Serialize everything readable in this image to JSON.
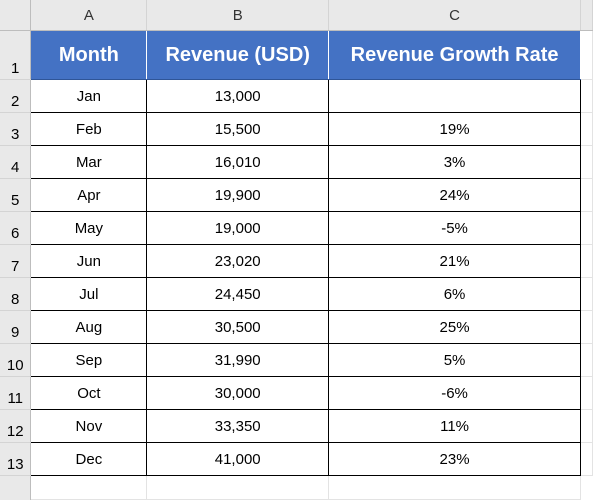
{
  "columns": [
    "A",
    "B",
    "C"
  ],
  "rows": [
    "1",
    "2",
    "3",
    "4",
    "5",
    "6",
    "7",
    "8",
    "9",
    "10",
    "11",
    "12",
    "13"
  ],
  "header": {
    "month": "Month",
    "revenue": "Revenue (USD)",
    "growth": "Revenue Growth Rate"
  },
  "data": [
    {
      "month": "Jan",
      "revenue": "13,000",
      "growth": ""
    },
    {
      "month": "Feb",
      "revenue": "15,500",
      "growth": "19%"
    },
    {
      "month": "Mar",
      "revenue": "16,010",
      "growth": "3%"
    },
    {
      "month": "Apr",
      "revenue": "19,900",
      "growth": "24%"
    },
    {
      "month": "May",
      "revenue": "19,000",
      "growth": "-5%"
    },
    {
      "month": "Jun",
      "revenue": "23,020",
      "growth": "21%"
    },
    {
      "month": "Jul",
      "revenue": "24,450",
      "growth": "6%"
    },
    {
      "month": "Aug",
      "revenue": "30,500",
      "growth": "25%"
    },
    {
      "month": "Sep",
      "revenue": "31,990",
      "growth": "5%"
    },
    {
      "month": "Oct",
      "revenue": "30,000",
      "growth": "-6%"
    },
    {
      "month": "Nov",
      "revenue": "33,350",
      "growth": "11%"
    },
    {
      "month": "Dec",
      "revenue": "41,000",
      "growth": "23%"
    }
  ],
  "colors": {
    "header_fill": "#4472c4",
    "header_text": "#ffffff",
    "headings_bg": "#e9e9e9"
  }
}
